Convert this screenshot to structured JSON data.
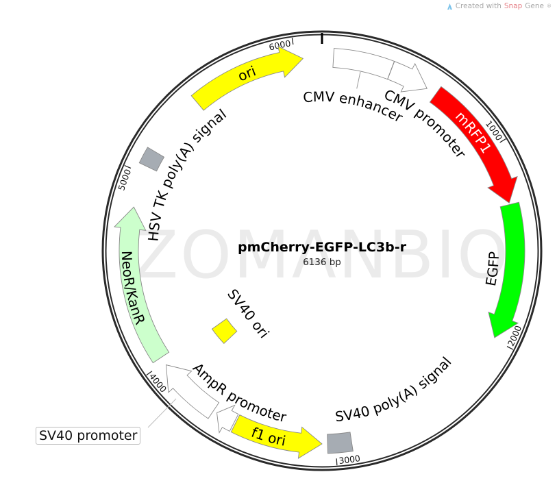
{
  "credit": {
    "prefix": "Created with ",
    "brand_a": "Snap",
    "brand_b": "Gene",
    "mark": "®",
    "icon": "snapgene-logo-icon"
  },
  "watermark": "ZOMANBIO",
  "plasmid": {
    "name": "pmCherry-EGFP-LC3b-r",
    "size_label": "6136 bp",
    "length_bp": 6136
  },
  "ticks": [
    {
      "bp": 1000,
      "label": "1000"
    },
    {
      "bp": 2000,
      "label": "2000"
    },
    {
      "bp": 3000,
      "label": "3000"
    },
    {
      "bp": 4000,
      "label": "4000"
    },
    {
      "bp": 5000,
      "label": "5000"
    },
    {
      "bp": 6000,
      "label": "6000"
    }
  ],
  "features": [
    {
      "name": "CMV enhancer",
      "start": 58,
      "end": 356,
      "strand": 0,
      "shape": "box",
      "color": "#ffffff"
    },
    {
      "name": "CMV promoter",
      "start": 357,
      "end": 561,
      "strand": 1,
      "shape": "arrow",
      "color": "#ffffff"
    },
    {
      "name": "mRFP1",
      "start": 613,
      "end": 1290,
      "strand": 1,
      "shape": "arrow",
      "color": "#ff0000"
    },
    {
      "name": "EGFP",
      "start": 1298,
      "end": 1990,
      "strand": 1,
      "shape": "arrow",
      "color": "#00ff00"
    },
    {
      "name": "SV40 poly(A) signal",
      "start": 2918,
      "end": 3040,
      "strand": 0,
      "shape": "box",
      "color": "#a6acb3"
    },
    {
      "name": "f1 ori",
      "start": 3068,
      "end": 3522,
      "strand": -1,
      "shape": "arrow",
      "color": "#ffff00"
    },
    {
      "name": "AmpR promoter",
      "start": 3530,
      "end": 3630,
      "strand": 1,
      "shape": "arrow",
      "color": "#ffffff"
    },
    {
      "name": "SV40 promoter",
      "start": 3650,
      "end": 3985,
      "strand": 1,
      "shape": "arrow",
      "color": "#ffffff"
    },
    {
      "name": "SV40 ori",
      "start": 3862,
      "end": 3998,
      "strand": 0,
      "shape": "box",
      "color": "#ffff00"
    },
    {
      "name": "NeoR/KanR",
      "start": 4030,
      "end": 4825,
      "strand": 1,
      "shape": "arrow",
      "color": "#ccffcc"
    },
    {
      "name": "HSV TK poly(A) signal",
      "start": 5040,
      "end": 5125,
      "strand": 0,
      "shape": "box",
      "color": "#a6acb3"
    },
    {
      "name": "ori",
      "start": 5452,
      "end": 6040,
      "strand": 1,
      "shape": "arrow",
      "color": "#ffff00"
    }
  ]
}
